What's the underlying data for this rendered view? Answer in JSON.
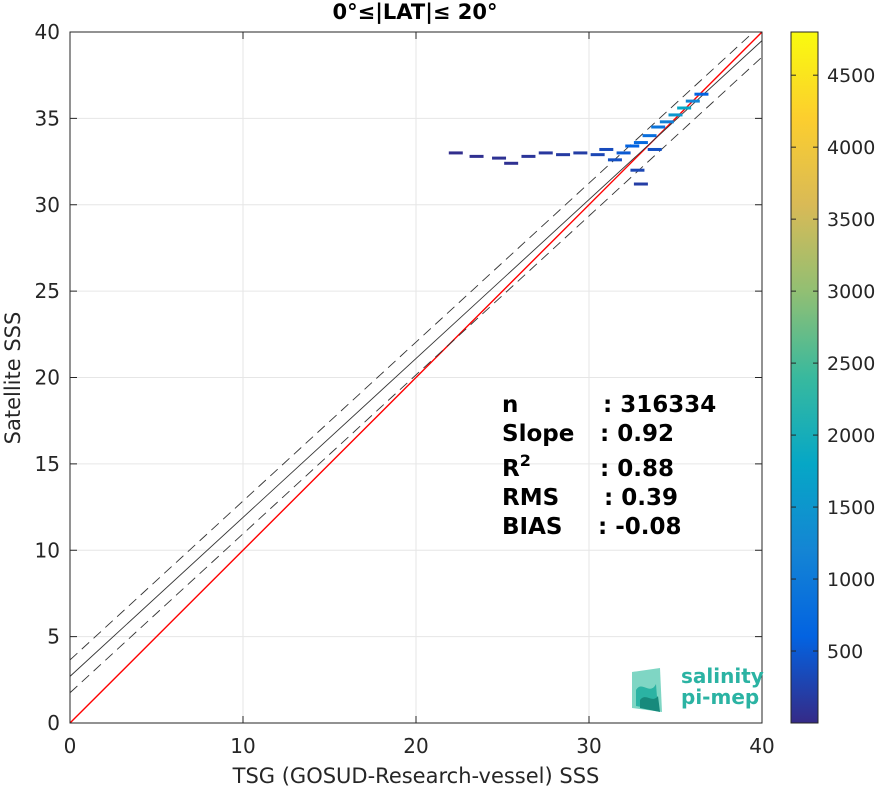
{
  "chart_data": {
    "type": "scatter",
    "title": "0°≤|LAT|≤ 20°",
    "xlabel": "TSG (GOSUD-Research-vessel) SSS",
    "ylabel": "Satellite SSS",
    "xlim": [
      0,
      40
    ],
    "ylim": [
      0,
      40
    ],
    "xticks": [
      0,
      10,
      20,
      30,
      40
    ],
    "yticks": [
      0,
      5,
      10,
      15,
      20,
      25,
      30,
      35,
      40
    ],
    "grid": true,
    "density_points": [
      {
        "x": 22.3,
        "y": 33.0,
        "count": 40
      },
      {
        "x": 23.5,
        "y": 32.8,
        "count": 60
      },
      {
        "x": 24.8,
        "y": 32.7,
        "count": 80
      },
      {
        "x": 25.5,
        "y": 32.4,
        "count": 70
      },
      {
        "x": 26.5,
        "y": 32.8,
        "count": 120
      },
      {
        "x": 27.5,
        "y": 33.0,
        "count": 150
      },
      {
        "x": 28.5,
        "y": 32.9,
        "count": 180
      },
      {
        "x": 29.5,
        "y": 33.0,
        "count": 200
      },
      {
        "x": 30.5,
        "y": 32.9,
        "count": 300
      },
      {
        "x": 31.0,
        "y": 33.2,
        "count": 350
      },
      {
        "x": 31.5,
        "y": 32.6,
        "count": 400
      },
      {
        "x": 32.0,
        "y": 33.0,
        "count": 500
      },
      {
        "x": 32.5,
        "y": 33.4,
        "count": 600
      },
      {
        "x": 33.0,
        "y": 33.6,
        "count": 700
      },
      {
        "x": 33.5,
        "y": 34.0,
        "count": 800
      },
      {
        "x": 34.0,
        "y": 34.5,
        "count": 900
      },
      {
        "x": 34.5,
        "y": 34.8,
        "count": 1100
      },
      {
        "x": 35.0,
        "y": 35.2,
        "count": 1500
      },
      {
        "x": 35.5,
        "y": 35.6,
        "count": 1800
      },
      {
        "x": 36.0,
        "y": 36.0,
        "count": 1200
      },
      {
        "x": 36.5,
        "y": 36.4,
        "count": 600
      },
      {
        "x": 33.8,
        "y": 33.2,
        "count": 400
      },
      {
        "x": 32.8,
        "y": 32.0,
        "count": 300
      },
      {
        "x": 33.0,
        "y": 31.2,
        "count": 200
      }
    ],
    "lines": [
      {
        "name": "1:1",
        "color": "#ff0000",
        "style": "solid",
        "slope": 1.0,
        "intercept": 0.0
      },
      {
        "name": "fit",
        "color": "#333333",
        "style": "solid",
        "slope": 0.92,
        "intercept": 2.7
      },
      {
        "name": "fit+",
        "color": "#333333",
        "style": "dashed",
        "slope": 0.92,
        "intercept": 3.65
      },
      {
        "name": "fit-",
        "color": "#333333",
        "style": "dashed",
        "slope": 0.92,
        "intercept": 1.75
      }
    ],
    "colorbar": {
      "min": 0,
      "max": 4800,
      "ticks": [
        "500",
        "1000",
        "1500",
        "2000",
        "2500",
        "3000",
        "3500",
        "4000",
        "4500"
      ],
      "tick_values": [
        500,
        1000,
        1500,
        2000,
        2500,
        3000,
        3500,
        4000,
        4500
      ],
      "colormap": "parula"
    },
    "stats": [
      {
        "label": "n",
        "value": ": 316334"
      },
      {
        "label": "Slope",
        "value": ": 0.92"
      },
      {
        "label": "R",
        "sup": "2",
        "value": ": 0.88"
      },
      {
        "label": "RMS",
        "value": ": 0.39"
      },
      {
        "label": "BIAS",
        "value": ": -0.08"
      }
    ]
  },
  "logo": {
    "line1": "salinity",
    "line2": "pi-mep"
  }
}
